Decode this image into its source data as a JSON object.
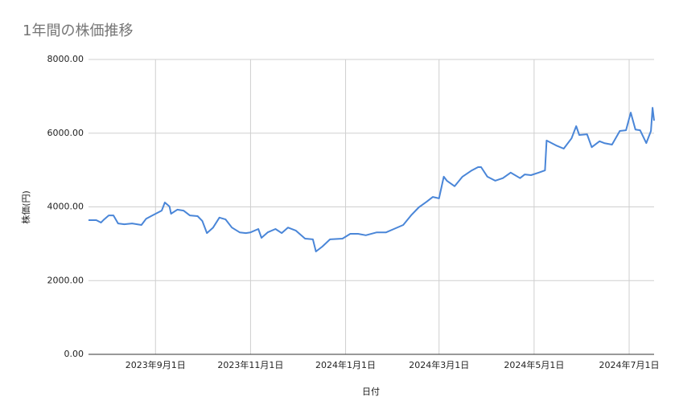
{
  "chart_data": {
    "type": "line",
    "title": "1年間の株価推移",
    "x_label": "日付",
    "y_label": "株価(円)",
    "x": [
      "2023-07-20",
      "2023-07-25",
      "2023-07-28",
      "2023-07-30",
      "2023-08-02",
      "2023-08-05",
      "2023-08-08",
      "2023-08-12",
      "2023-08-17",
      "2023-08-23",
      "2023-08-26",
      "2023-08-30",
      "2023-09-05",
      "2023-09-07",
      "2023-09-10",
      "2023-09-11",
      "2023-09-15",
      "2023-09-19",
      "2023-09-23",
      "2023-09-28",
      "2023-10-01",
      "2023-10-04",
      "2023-10-08",
      "2023-10-12",
      "2023-10-16",
      "2023-10-20",
      "2023-10-25",
      "2023-10-29",
      "2023-11-01",
      "2023-11-06",
      "2023-11-08",
      "2023-11-12",
      "2023-11-17",
      "2023-11-21",
      "2023-11-25",
      "2023-11-30",
      "2023-12-06",
      "2023-12-11",
      "2023-12-13",
      "2023-12-17",
      "2023-12-22",
      "2023-12-30",
      "2024-01-04",
      "2024-01-09",
      "2024-01-14",
      "2024-01-21",
      "2024-01-27",
      "2024-02-01",
      "2024-02-07",
      "2024-02-12",
      "2024-02-17",
      "2024-02-22",
      "2024-02-26",
      "2024-03-01",
      "2024-03-04",
      "2024-03-06",
      "2024-03-11",
      "2024-03-16",
      "2024-03-22",
      "2024-03-26",
      "2024-03-28",
      "2024-04-01",
      "2024-04-06",
      "2024-04-11",
      "2024-04-16",
      "2024-04-22",
      "2024-04-25",
      "2024-04-29",
      "2024-05-04",
      "2024-05-08",
      "2024-05-09",
      "2024-05-15",
      "2024-05-20",
      "2024-05-25",
      "2024-05-28",
      "2024-05-30",
      "2024-06-04",
      "2024-06-07",
      "2024-06-12",
      "2024-06-15",
      "2024-06-20",
      "2024-06-25",
      "2024-06-29",
      "2024-07-02",
      "2024-07-05",
      "2024-07-08",
      "2024-07-12",
      "2024-07-15",
      "2024-07-16",
      "2024-07-17"
    ],
    "values": [
      3640,
      3640,
      3575,
      3660,
      3770,
      3770,
      3550,
      3530,
      3550,
      3510,
      3680,
      3770,
      3900,
      4120,
      4010,
      3815,
      3925,
      3900,
      3770,
      3750,
      3620,
      3290,
      3440,
      3710,
      3660,
      3440,
      3310,
      3290,
      3310,
      3400,
      3160,
      3310,
      3400,
      3290,
      3440,
      3360,
      3140,
      3120,
      2790,
      2920,
      3120,
      3140,
      3270,
      3270,
      3230,
      3310,
      3310,
      3400,
      3510,
      3770,
      3990,
      4140,
      4270,
      4230,
      4820,
      4710,
      4560,
      4820,
      4990,
      5080,
      5080,
      4820,
      4710,
      4780,
      4930,
      4780,
      4880,
      4860,
      4930,
      4990,
      5800,
      5670,
      5580,
      5860,
      6190,
      5950,
      5970,
      5620,
      5780,
      5730,
      5690,
      6060,
      6080,
      6560,
      6100,
      6080,
      5730,
      6060,
      6690,
      6340
    ],
    "color": "#4a86d8",
    "xlim": [
      "2023-07-20",
      "2024-07-17"
    ],
    "xticks": [
      {
        "value": "2023-09-01",
        "label": "2023年9月1日"
      },
      {
        "value": "2023-11-01",
        "label": "2023年11月1日"
      },
      {
        "value": "2024-01-01",
        "label": "2024年1月1日"
      },
      {
        "value": "2024-03-01",
        "label": "2024年3月1日"
      },
      {
        "value": "2024-05-01",
        "label": "2024年5月1日"
      },
      {
        "value": "2024-07-01",
        "label": "2024年7月1日"
      }
    ],
    "ylim": [
      0,
      8000
    ],
    "yticks": [
      {
        "value": 0,
        "label": "0.00"
      },
      {
        "value": 2000,
        "label": "2000.00"
      },
      {
        "value": 4000,
        "label": "4000.00"
      },
      {
        "value": 6000,
        "label": "6000.00"
      },
      {
        "value": 8000,
        "label": "8000.00"
      }
    ],
    "grid": true
  }
}
